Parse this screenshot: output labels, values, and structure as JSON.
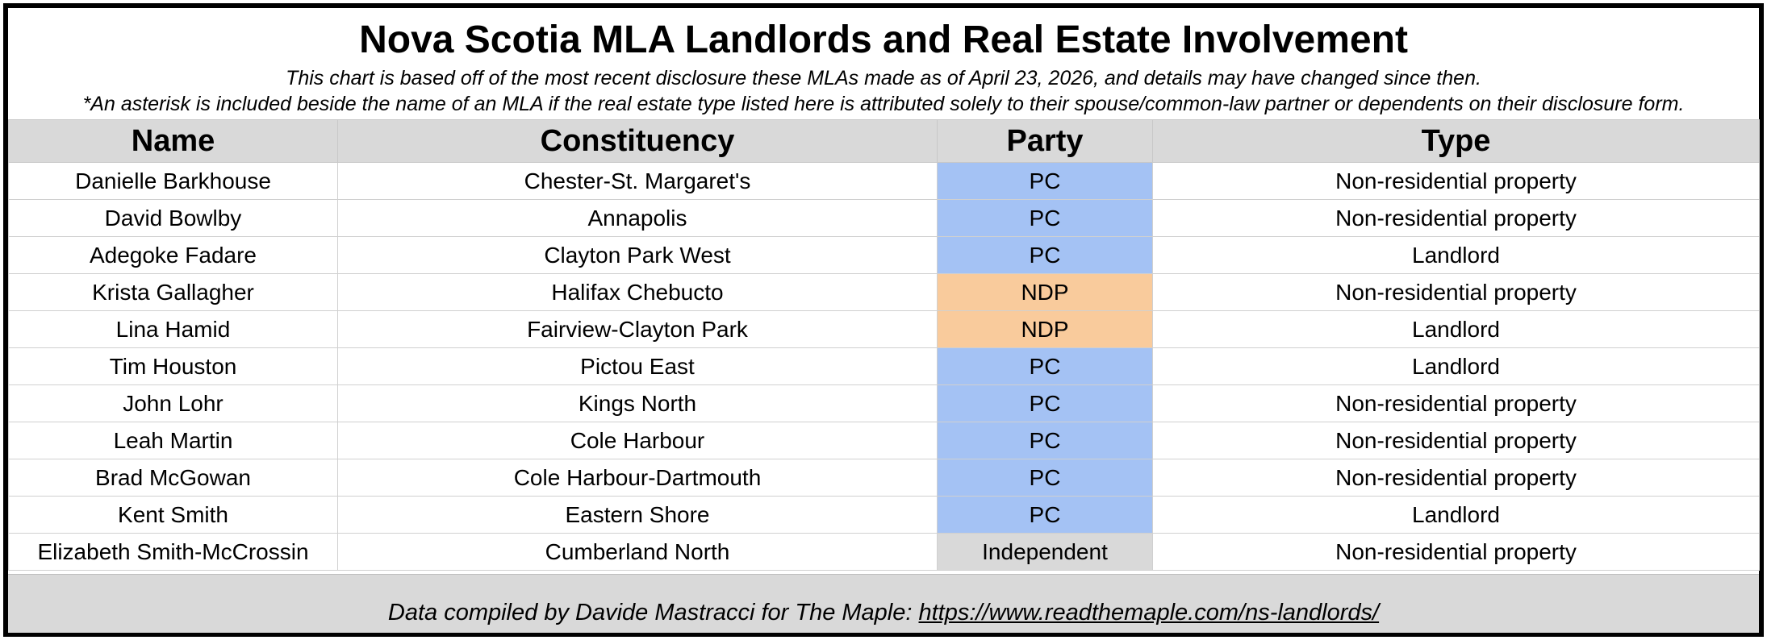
{
  "title": "Nova Scotia MLA Landlords and Real Estate Involvement",
  "subtitle_1": "This chart is based off of the most recent disclosure these MLAs made as of April 23, 2026, and details may have changed since then.",
  "subtitle_2": "*An asterisk is included beside the name of an MLA if the real estate type listed here is attributed solely to their spouse/common-law partner or dependents on their disclosure form.",
  "table": {
    "headers": {
      "name": "Name",
      "constituency": "Constituency",
      "party": "Party",
      "type": "Type"
    },
    "rows": [
      {
        "name": "Danielle Barkhouse",
        "constituency": "Chester-St. Margaret's",
        "party": "PC",
        "type": "Non-residential property"
      },
      {
        "name": "David Bowlby",
        "constituency": "Annapolis",
        "party": "PC",
        "type": "Non-residential property"
      },
      {
        "name": "Adegoke Fadare",
        "constituency": "Clayton Park West",
        "party": "PC",
        "type": "Landlord"
      },
      {
        "name": "Krista Gallagher",
        "constituency": "Halifax Chebucto",
        "party": "NDP",
        "type": "Non-residential property"
      },
      {
        "name": "Lina Hamid",
        "constituency": "Fairview-Clayton Park",
        "party": "NDP",
        "type": "Landlord"
      },
      {
        "name": "Tim Houston",
        "constituency": "Pictou East",
        "party": "PC",
        "type": "Landlord"
      },
      {
        "name": "John Lohr",
        "constituency": "Kings North",
        "party": "PC",
        "type": "Non-residential property"
      },
      {
        "name": "Leah Martin",
        "constituency": "Cole Harbour",
        "party": "PC",
        "type": "Non-residential property"
      },
      {
        "name": "Brad McGowan",
        "constituency": "Cole Harbour-Dartmouth",
        "party": "PC",
        "type": "Non-residential property"
      },
      {
        "name": "Kent Smith",
        "constituency": "Eastern Shore",
        "party": "PC",
        "type": "Landlord"
      },
      {
        "name": "Elizabeth Smith-McCrossin",
        "constituency": "Cumberland North",
        "party": "Independent",
        "type": "Non-residential property"
      }
    ]
  },
  "party_colors": {
    "PC": "#a4c2f4",
    "NDP": "#f9cb9c",
    "Independent": "#d9d9d9"
  },
  "footer": {
    "credit": "Data compiled by Davide Mastracci for The Maple: ",
    "link_text": "https://www.readthemaple.com/ns-landlords/"
  }
}
